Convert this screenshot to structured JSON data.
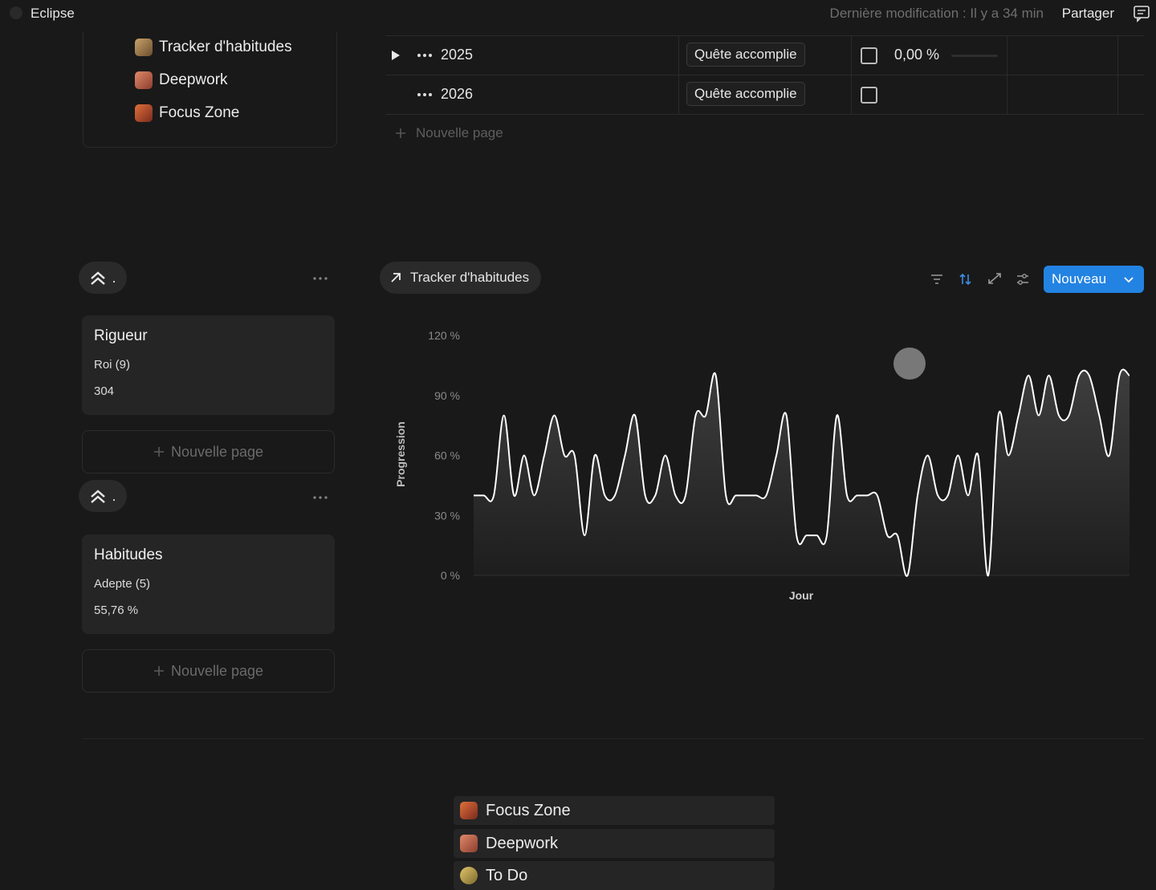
{
  "topbar": {
    "workspace": "Eclipse",
    "last_edit": "Dernière modification : Il y a 34 min",
    "share": "Partager"
  },
  "links": [
    "Tracker d'habitudes",
    "Deepwork",
    "Focus Zone"
  ],
  "table": {
    "rows": [
      {
        "name": "2025",
        "status": "Quête accomplie",
        "progress": "0,00 %"
      },
      {
        "name": "2026",
        "status": "Quête accomplie"
      }
    ],
    "new_page": "Nouvelle page"
  },
  "board": {
    "groups": [
      {
        "label": ".",
        "card": {
          "title": "Rigueur",
          "level": "Roi (9)",
          "value": "304"
        },
        "new_page": "Nouvelle page"
      },
      {
        "label": ".",
        "card": {
          "title": "Habitudes",
          "level": "Adepte (5)",
          "value": "55,76 %"
        },
        "new_page": "Nouvelle page"
      }
    ]
  },
  "view": {
    "tab": "Tracker d'habitudes",
    "new_button": "Nouveau"
  },
  "chart_data": {
    "type": "line",
    "xlabel": "Jour",
    "ylabel": "Progression",
    "color": "#ffffff",
    "grid": false,
    "categories": [
      null,
      null,
      null,
      null,
      null,
      null,
      null,
      null,
      null,
      null,
      null,
      null,
      null,
      null,
      null,
      null,
      null,
      null,
      null,
      null,
      null,
      null,
      null,
      null,
      null,
      null,
      null,
      null,
      null,
      null,
      null,
      null,
      null,
      null,
      null,
      null,
      null,
      null,
      null,
      null,
      null,
      null,
      null,
      null,
      null,
      null,
      null,
      null,
      null,
      null,
      null,
      null,
      null,
      null,
      null,
      null,
      null,
      null,
      null,
      null,
      null,
      null,
      null,
      null,
      null,
      null
    ],
    "values": [
      40,
      40,
      40,
      80,
      40,
      60,
      40,
      60,
      80,
      60,
      60,
      20,
      60,
      40,
      40,
      60,
      80,
      40,
      40,
      60,
      40,
      40,
      80,
      80,
      100,
      40,
      40,
      40,
      40,
      40,
      60,
      80,
      20,
      20,
      20,
      20,
      80,
      40,
      40,
      40,
      40,
      20,
      20,
      0,
      40,
      60,
      40,
      40,
      60,
      40,
      60,
      0,
      80,
      60,
      80,
      100,
      80,
      100,
      80,
      80,
      100,
      100,
      80,
      60,
      100,
      100
    ],
    "ylim": [
      0,
      120
    ],
    "yticks": [
      {
        "value": 0,
        "label": "0 %"
      },
      {
        "value": 30,
        "label": "30 %"
      },
      {
        "value": 60,
        "label": "60 %"
      },
      {
        "value": 90,
        "label": "90 %"
      },
      {
        "value": 120,
        "label": "120 %"
      }
    ]
  },
  "bottom_links": [
    "Focus Zone",
    "Deepwork",
    "To Do"
  ]
}
